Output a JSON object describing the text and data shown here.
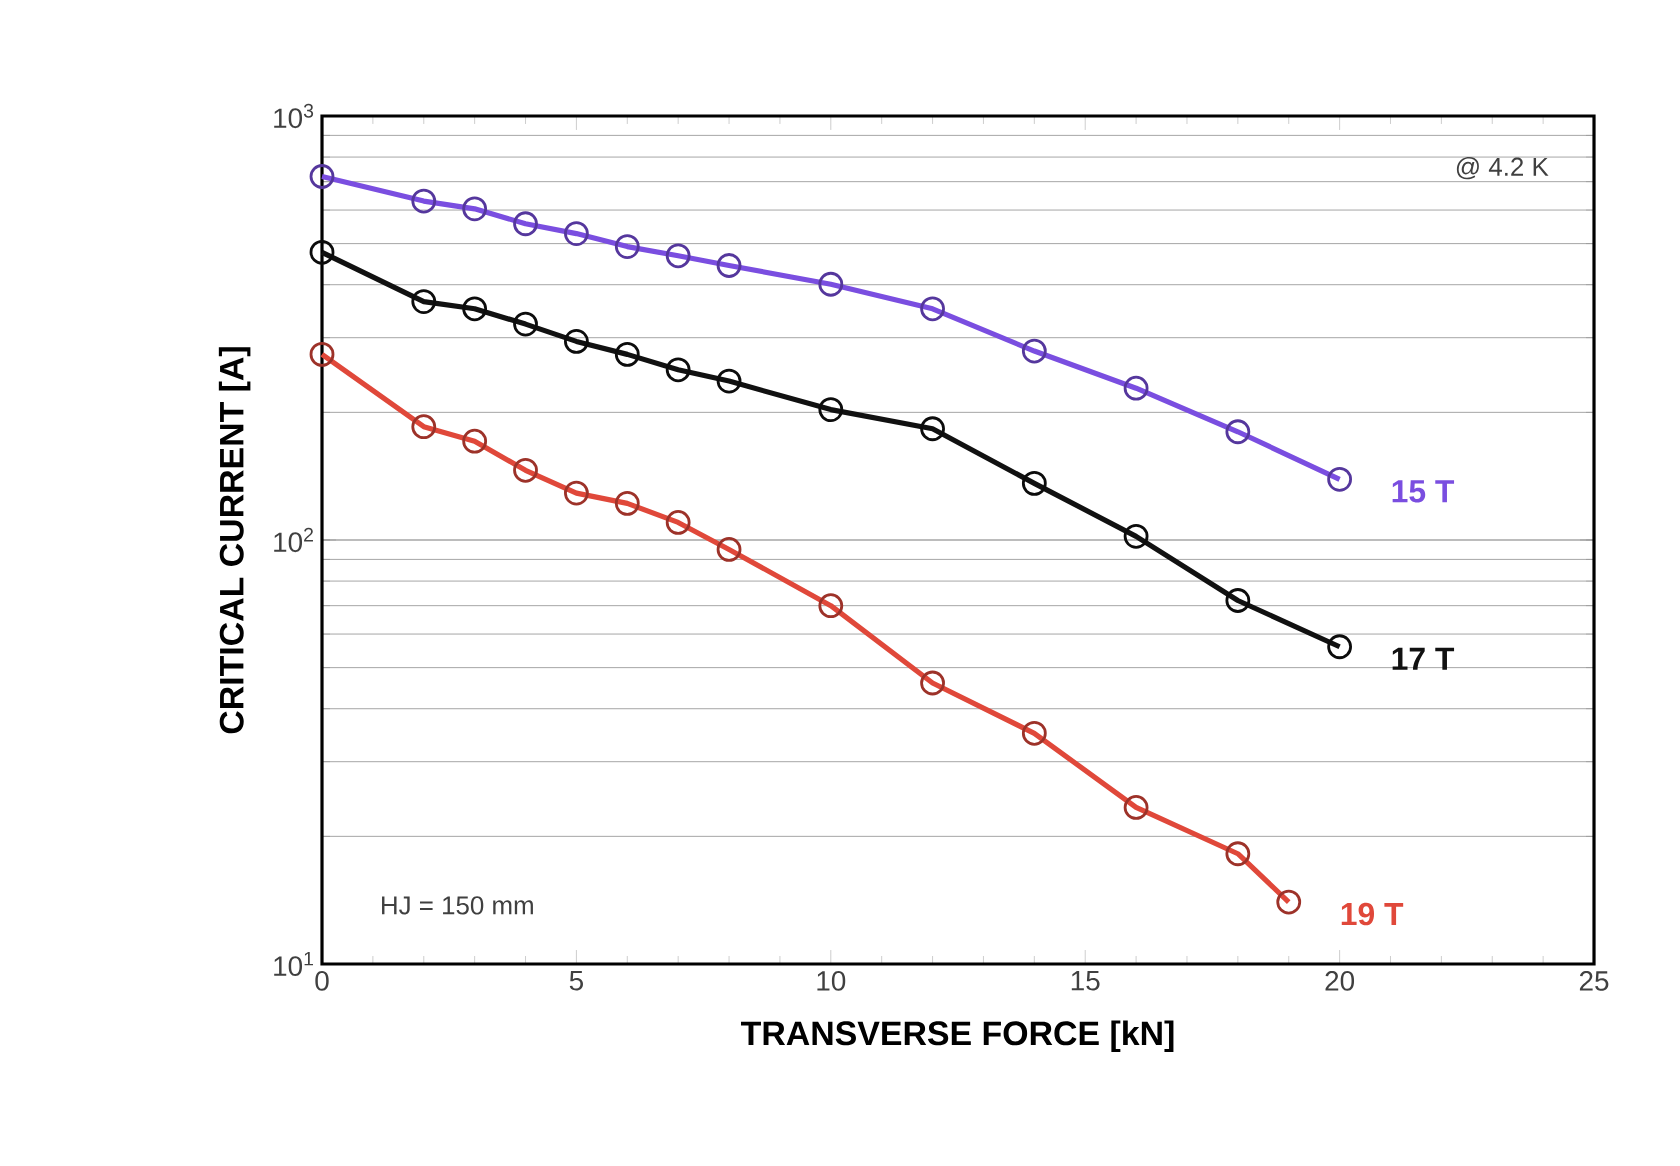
{
  "chart_data": {
    "type": "line",
    "xlabel": "TRANSVERSE FORCE  [kN]",
    "ylabel": "CRITICAL CURRENT  [A]",
    "log": "y",
    "grid": "y",
    "marker": "circle",
    "line_style": "solid",
    "xlim": [
      0,
      25
    ],
    "xticks": [
      0,
      5,
      10,
      15,
      20,
      25
    ],
    "ylim": [
      10,
      1000
    ],
    "yticks": [
      {
        "value": 10,
        "label": "10$^{1}$"
      },
      {
        "value": 100,
        "label": "10$^{2}$"
      },
      {
        "value": 1000,
        "label": "10$^{3}$"
      }
    ],
    "annotations": [
      "@ 4.2 K",
      "HJ = 150 mm"
    ],
    "series": [
      {
        "name": "15 T",
        "color": "#7a4ee0",
        "x": [
          0,
          2,
          3,
          4,
          5,
          6,
          7,
          8,
          10,
          12,
          14,
          16,
          18,
          20
        ],
        "values": [
          720,
          630,
          604,
          557,
          528,
          492,
          468,
          444,
          401,
          351,
          279,
          228,
          180,
          139
        ]
      },
      {
        "name": "17 T",
        "color": "#111111",
        "x": [
          0,
          2,
          3,
          4,
          5,
          6,
          7,
          8,
          10,
          12,
          14,
          16,
          18,
          20
        ],
        "values": [
          477,
          365,
          351,
          323,
          294,
          274,
          252,
          237,
          203,
          183,
          136,
          102,
          72,
          56
        ]
      },
      {
        "name": "19 T",
        "color": "#e0483a",
        "x": [
          0,
          2,
          3,
          4,
          5,
          6,
          7,
          8,
          10,
          12,
          14,
          16,
          18,
          19
        ],
        "values": [
          274,
          185,
          171,
          146,
          129,
          122,
          110,
          95,
          70,
          46,
          35,
          23.4,
          18.2,
          14
        ]
      }
    ]
  }
}
